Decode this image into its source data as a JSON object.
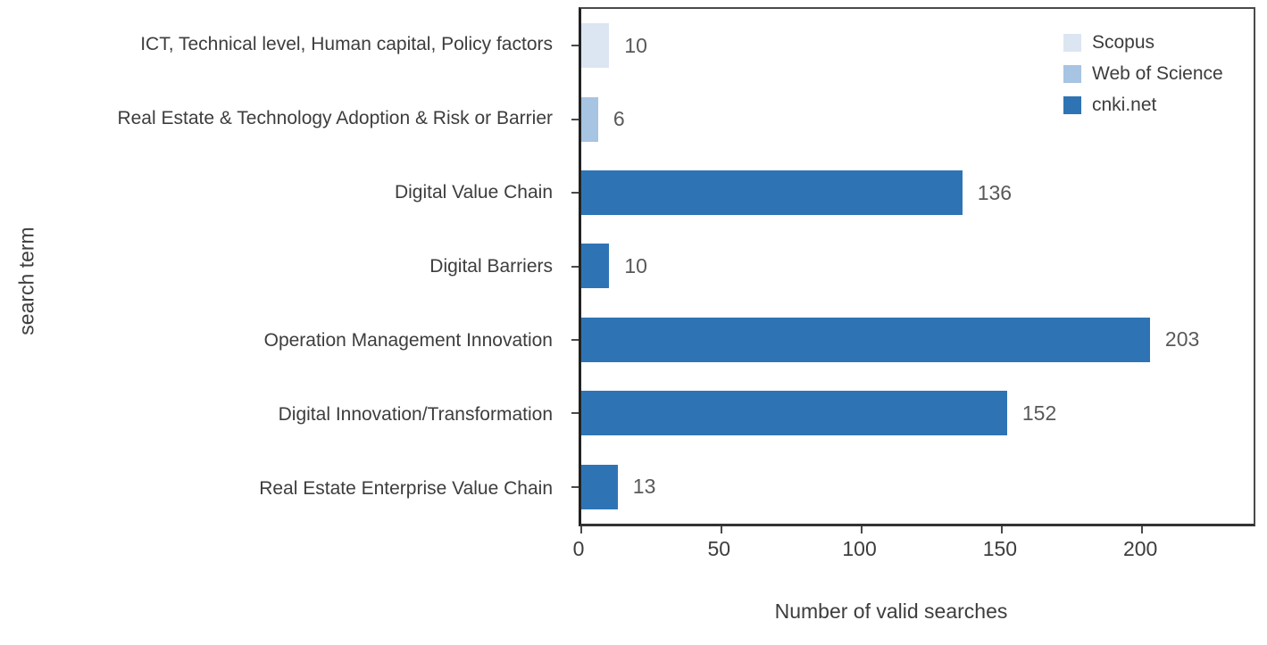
{
  "chart_data": {
    "type": "bar",
    "orientation": "horizontal",
    "title": "",
    "xlabel": "Number of valid searches",
    "ylabel": "search term",
    "xlim": [
      0,
      240
    ],
    "xticks": [
      0,
      50,
      100,
      150,
      200
    ],
    "grid": false,
    "legend_position": "top-right",
    "legend": [
      {
        "name": "Scopus",
        "color": "#dce6f2"
      },
      {
        "name": "Web of Science",
        "color": "#a7c4e2"
      },
      {
        "name": "cnki.net",
        "color": "#2e74b5"
      }
    ],
    "bars": [
      {
        "category": "ICT, Technical level, Human capital, Policy factors",
        "value": 10,
        "series": "Scopus"
      },
      {
        "category": "Real Estate & Technology Adoption & Risk or Barrier",
        "value": 6,
        "series": "Web of Science"
      },
      {
        "category": "Digital Value Chain",
        "value": 136,
        "series": "cnki.net"
      },
      {
        "category": "Digital Barriers",
        "value": 10,
        "series": "cnki.net"
      },
      {
        "category": "Operation Management Innovation",
        "value": 203,
        "series": "cnki.net"
      },
      {
        "category": "Digital Innovation/Transformation",
        "value": 152,
        "series": "cnki.net"
      },
      {
        "category": "Real Estate Enterprise Value Chain",
        "value": 13,
        "series": "cnki.net"
      }
    ]
  },
  "colors": {
    "axis_line": "#4a4a4a",
    "tick_text": "#3d3d3d",
    "category_text": "#3d3d3d",
    "data_label_text": "#595959",
    "background": "#ffffff"
  }
}
